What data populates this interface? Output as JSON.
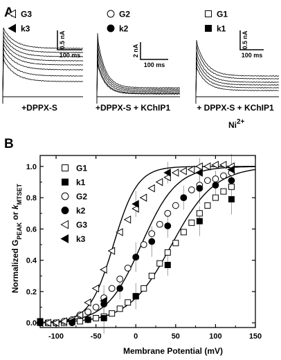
{
  "panel_a": {
    "letter": "A",
    "groups": [
      {
        "condition": "+DPPX-S",
        "legend": [
          {
            "label": "G3",
            "marker": "triangle-left-open"
          },
          {
            "label": "k3",
            "marker": "triangle-left-filled"
          }
        ],
        "scale_y": "0.5 nA",
        "scale_x": "100 ms"
      },
      {
        "condition": "+DPPX-S + KChIP1",
        "legend": [
          {
            "label": "G2",
            "marker": "circle-open"
          },
          {
            "label": "k2",
            "marker": "circle-filled"
          }
        ],
        "scale_y": "2 nA",
        "scale_x": "100 ms"
      },
      {
        "condition": "+ DPPX-S + KChIP1",
        "condition_line2": "Ni",
        "condition_sup": "2+",
        "legend": [
          {
            "label": "G1",
            "marker": "square-open"
          },
          {
            "label": "k1",
            "marker": "square-filled"
          }
        ],
        "scale_y": "0.5 nA",
        "scale_x": "100 ms"
      }
    ]
  },
  "panel_b": {
    "letter": "B"
  },
  "chart_data": {
    "type": "scatter",
    "xlabel": "Membrane Potential (mV)",
    "ylabel_prefix": "Normalized G",
    "ylabel_sub1": "PEAK",
    "ylabel_mid": " or ",
    "ylabel_k": "k",
    "ylabel_sub2": "MTSET",
    "xlim": [
      -120,
      150
    ],
    "ylim": [
      -0.03,
      1.07
    ],
    "xticks": [
      -100,
      -50,
      0,
      50,
      100,
      150
    ],
    "yticks": [
      0.0,
      0.2,
      0.4,
      0.6,
      0.8,
      1.0
    ],
    "ytick_labels": [
      "0.0",
      "0.2",
      "0.4",
      "0.6",
      "0.8",
      "1.0"
    ],
    "legend_position": "left",
    "series": [
      {
        "name": "G1",
        "marker": "square-open",
        "x": [
          -120,
          -110,
          -100,
          -90,
          -80,
          -70,
          -60,
          -50,
          -40,
          -30,
          -20,
          -10,
          0,
          10,
          20,
          30,
          40,
          50,
          60,
          70,
          80,
          90,
          100,
          110,
          120
        ],
        "y": [
          0.0,
          0.0,
          0.0,
          0.0,
          0.01,
          0.01,
          0.02,
          0.03,
          0.04,
          0.06,
          0.09,
          0.13,
          0.17,
          0.22,
          0.3,
          0.38,
          0.45,
          0.51,
          0.58,
          0.64,
          0.7,
          0.75,
          0.8,
          0.84,
          0.87
        ]
      },
      {
        "name": "k1",
        "marker": "square-filled",
        "x": [
          -120,
          -80,
          -40,
          0,
          40,
          80,
          120
        ],
        "y": [
          0.01,
          0.01,
          0.03,
          0.17,
          0.37,
          0.65,
          0.79
        ]
      },
      {
        "name": "G2",
        "marker": "circle-open",
        "x": [
          -120,
          -110,
          -100,
          -90,
          -80,
          -70,
          -60,
          -50,
          -40,
          -30,
          -20,
          -10,
          0,
          10,
          20,
          30,
          40,
          50,
          60,
          70,
          80,
          90,
          100,
          110,
          120
        ],
        "y": [
          0.0,
          0.0,
          0.0,
          0.01,
          0.02,
          0.05,
          0.07,
          0.1,
          0.16,
          0.22,
          0.28,
          0.35,
          0.42,
          0.5,
          0.57,
          0.63,
          0.7,
          0.75,
          0.8,
          0.85,
          0.88,
          0.91,
          0.92,
          0.94,
          0.96
        ]
      },
      {
        "name": "k2",
        "marker": "circle-filled",
        "x": [
          -120,
          -80,
          -60,
          -40,
          -20,
          0,
          20,
          40,
          60,
          80,
          100,
          120
        ],
        "y": [
          0.0,
          0.0,
          0.02,
          0.12,
          0.22,
          0.42,
          0.52,
          0.62,
          0.8,
          0.86,
          0.88,
          0.91
        ]
      },
      {
        "name": "G3",
        "marker": "triangle-left-open",
        "x": [
          -120,
          -110,
          -100,
          -90,
          -80,
          -70,
          -60,
          -50,
          -40,
          -30,
          -20,
          -10,
          0,
          10,
          20,
          30,
          40,
          50,
          60,
          70,
          80,
          90,
          100,
          110,
          120
        ],
        "y": [
          0.0,
          0.0,
          0.0,
          0.01,
          0.02,
          0.05,
          0.13,
          0.22,
          0.34,
          0.46,
          0.58,
          0.66,
          0.73,
          0.8,
          0.86,
          0.9,
          0.93,
          0.96,
          0.97,
          0.98,
          1.0,
          1.0,
          1.01,
          1.01,
          1.0
        ]
      },
      {
        "name": "k3",
        "marker": "triangle-left-filled",
        "x": [
          -120,
          -80,
          -40,
          0,
          40,
          80,
          120
        ],
        "y": [
          0.0,
          0.01,
          0.14,
          0.76,
          0.96,
          0.96,
          0.98
        ]
      }
    ],
    "fits": [
      {
        "name": "fit-1",
        "v_half": 45,
        "slope": 27,
        "xmin": -120,
        "xmax": 150
      },
      {
        "name": "fit-2",
        "v_half": 7,
        "slope": 22,
        "xmin": -120,
        "xmax": 150
      },
      {
        "name": "fit-3",
        "v_half": -28,
        "slope": 15,
        "xmin": -120,
        "xmax": 150
      }
    ]
  }
}
